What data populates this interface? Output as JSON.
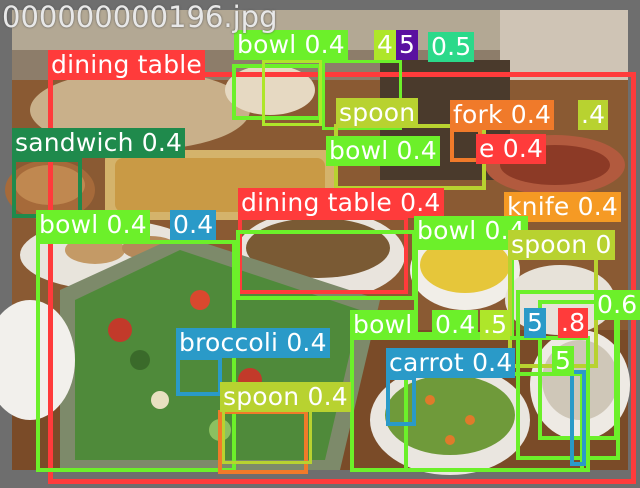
{
  "image": {
    "filename_overlay": "000000000196.jpg"
  },
  "detections": [
    {
      "id": "t1",
      "label": "dining table",
      "score": "",
      "color": "#ff3b3b"
    },
    {
      "id": "t2",
      "label": "bowl 0.4",
      "score": "",
      "color": "#6cf02a"
    },
    {
      "id": "t3",
      "label": "4",
      "score": "",
      "color": "#aee62a"
    },
    {
      "id": "t4",
      "label": "5",
      "score": "",
      "color": "#5a10a0"
    },
    {
      "id": "t5",
      "label": "0.5",
      "score": "",
      "color": "#2bd98a"
    },
    {
      "id": "t6",
      "label": "0.4",
      "score": "",
      "color": "#aee62a"
    },
    {
      "id": "t7",
      "label": "sandwich 0.4",
      "score": "",
      "color": "#1f8a4c"
    },
    {
      "id": "t8",
      "label": "spoon",
      "score": "",
      "color": "#b8d230"
    },
    {
      "id": "t9",
      "label": "fork 0.4",
      "score": "",
      "color": "#f07a2a"
    },
    {
      "id": "t10",
      "label": ".4",
      "score": "",
      "color": "#b8d230"
    },
    {
      "id": "t11",
      "label": "bowl 0.4",
      "score": "",
      "color": "#6cf02a"
    },
    {
      "id": "t12",
      "label": "e 0.4",
      "score": "",
      "color": "#ff3b3b"
    },
    {
      "id": "t13",
      "label": "dining table 0.4",
      "score": "",
      "color": "#ff3b3b"
    },
    {
      "id": "t14",
      "label": "knife 0.4",
      "score": "",
      "color": "#f59a24"
    },
    {
      "id": "t15",
      "label": "bowl 0.4",
      "score": "",
      "color": "#6cf02a"
    },
    {
      "id": "t16",
      "label": "0.4",
      "score": "",
      "color": "#2a9ac8"
    },
    {
      "id": "t17",
      "label": "bowl 0.4",
      "score": "",
      "color": "#6cf02a"
    },
    {
      "id": "t18",
      "label": "spoon 0",
      "score": "",
      "color": "#b8d230"
    },
    {
      "id": "t19",
      "label": "0.6",
      "score": "",
      "color": "#6cf02a"
    },
    {
      "id": "t20",
      "label": "bowl",
      "score": "",
      "color": "#6cf02a"
    },
    {
      "id": "t21",
      "label": "0.4",
      "score": "",
      "color": "#6cf02a"
    },
    {
      "id": "t22",
      "label": ".5",
      "score": "",
      "color": "#aee62a"
    },
    {
      "id": "t23",
      "label": "5",
      "score": "",
      "color": "#2a9ac8"
    },
    {
      "id": "t24",
      "label": ".8",
      "score": "",
      "color": "#ff3b3b"
    },
    {
      "id": "t25",
      "label": "broccoli 0.4",
      "score": "",
      "color": "#2a9ac8"
    },
    {
      "id": "t26",
      "label": "carrot 0.4",
      "score": "",
      "color": "#2a9ac8"
    },
    {
      "id": "t27",
      "label": "5",
      "score": "",
      "color": "#6cf02a"
    },
    {
      "id": "t28",
      "label": "spoon 0.4",
      "score": "",
      "color": "#b8d230"
    }
  ],
  "colors": {
    "dining_table": "#ff3b3b",
    "bowl": "#6cf02a",
    "spoon": "#b8d230",
    "fork": "#f07a2a",
    "knife": "#f59a24",
    "broccoli": "#2a9ac8",
    "carrot": "#2a9ac8",
    "sandwich": "#1f8a4c",
    "frame": "#6e6e6e"
  }
}
